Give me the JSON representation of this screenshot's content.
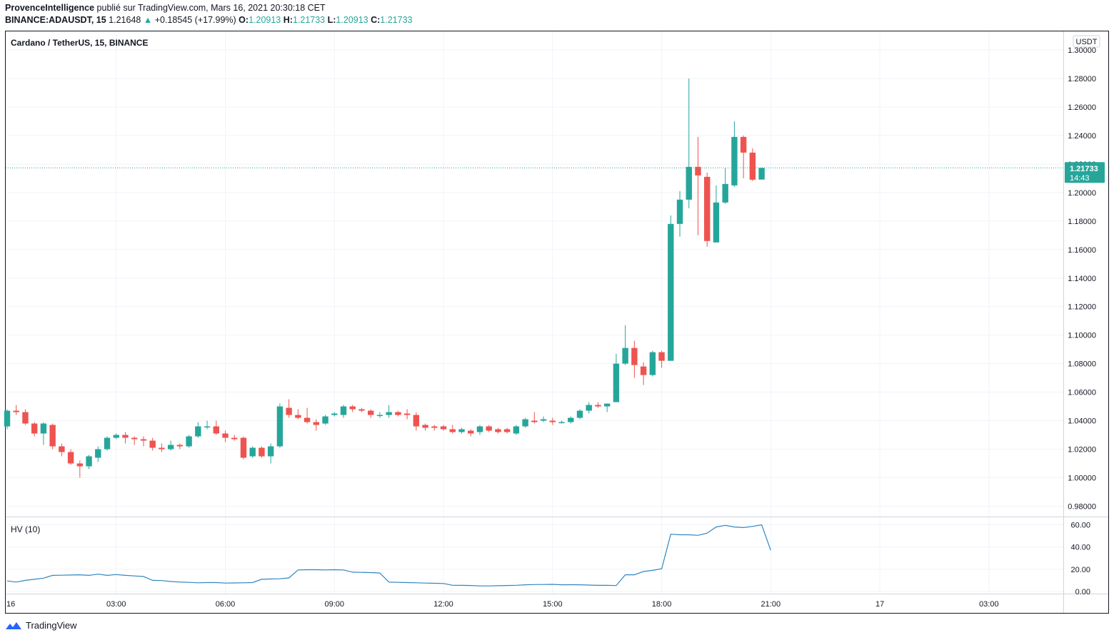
{
  "header": {
    "author": "ProvenceIntelligence",
    "published_text": "publié sur TradingView.com, Mars 16, 2021 20:30:18 CET",
    "symbol": "BINANCE:ADAUSDT, 15",
    "last": "1.21648",
    "change_arrow": "▲",
    "change": "+0.18545 (+17.99%)",
    "o_label": "O:",
    "o_value": "1.20913",
    "h_label": "H:",
    "h_value": "1.21733",
    "l_label": "L:",
    "l_value": "1.20913",
    "c_label": "C:",
    "c_value": "1.21733"
  },
  "footer": {
    "brand": "TradingView"
  },
  "colors": {
    "up": "#26a69a",
    "down": "#ef5350",
    "hv_line": "#2e86c1",
    "grid": "#f0f3fa"
  },
  "chart_data": [
    {
      "type": "candlestick",
      "title": "Cardano / TetherUS, 15, BINANCE",
      "currency": "USDT",
      "ylim": [
        0.97,
        1.305
      ],
      "y_ticks": [
        "0.98000",
        "1.00000",
        "1.02000",
        "1.04000",
        "1.06000",
        "1.08000",
        "1.10000",
        "1.12000",
        "1.14000",
        "1.16000",
        "1.18000",
        "1.20000",
        "1.22000",
        "1.24000",
        "1.26000",
        "1.28000",
        "1.30000"
      ],
      "last_price": "1.21733",
      "countdown": "14:43",
      "x_axis": {
        "labels": [
          "16",
          "03:00",
          "06:00",
          "09:00",
          "12:00",
          "15:00",
          "18:00",
          "21:00",
          "17",
          "03:00"
        ],
        "label_bar_index": [
          0,
          12,
          24,
          36,
          48,
          60,
          72,
          84,
          96,
          108
        ]
      },
      "bar_interval": "15m",
      "candles": [
        {
          "o": 1.036,
          "h": 1.048,
          "l": 1.034,
          "c": 1.047
        },
        {
          "o": 1.047,
          "h": 1.051,
          "l": 1.044,
          "c": 1.046
        },
        {
          "o": 1.046,
          "h": 1.048,
          "l": 1.037,
          "c": 1.038
        },
        {
          "o": 1.038,
          "h": 1.039,
          "l": 1.029,
          "c": 1.031
        },
        {
          "o": 1.031,
          "h": 1.039,
          "l": 1.023,
          "c": 1.038
        },
        {
          "o": 1.037,
          "h": 1.038,
          "l": 1.02,
          "c": 1.022
        },
        {
          "o": 1.022,
          "h": 1.024,
          "l": 1.015,
          "c": 1.018
        },
        {
          "o": 1.018,
          "h": 1.02,
          "l": 1.009,
          "c": 1.01
        },
        {
          "o": 1.01,
          "h": 1.012,
          "l": 1.0,
          "c": 1.008
        },
        {
          "o": 1.008,
          "h": 1.016,
          "l": 1.006,
          "c": 1.015
        },
        {
          "o": 1.014,
          "h": 1.022,
          "l": 1.011,
          "c": 1.02
        },
        {
          "o": 1.02,
          "h": 1.029,
          "l": 1.019,
          "c": 1.028
        },
        {
          "o": 1.028,
          "h": 1.031,
          "l": 1.027,
          "c": 1.03
        },
        {
          "o": 1.03,
          "h": 1.032,
          "l": 1.024,
          "c": 1.028
        },
        {
          "o": 1.028,
          "h": 1.029,
          "l": 1.023,
          "c": 1.027
        },
        {
          "o": 1.027,
          "h": 1.029,
          "l": 1.022,
          "c": 1.026
        },
        {
          "o": 1.026,
          "h": 1.028,
          "l": 1.019,
          "c": 1.021
        },
        {
          "o": 1.021,
          "h": 1.024,
          "l": 1.018,
          "c": 1.02
        },
        {
          "o": 1.02,
          "h": 1.026,
          "l": 1.019,
          "c": 1.023
        },
        {
          "o": 1.023,
          "h": 1.024,
          "l": 1.02,
          "c": 1.022
        },
        {
          "o": 1.022,
          "h": 1.03,
          "l": 1.021,
          "c": 1.029
        },
        {
          "o": 1.029,
          "h": 1.039,
          "l": 1.028,
          "c": 1.036
        },
        {
          "o": 1.036,
          "h": 1.04,
          "l": 1.034,
          "c": 1.036
        },
        {
          "o": 1.036,
          "h": 1.04,
          "l": 1.03,
          "c": 1.031
        },
        {
          "o": 1.031,
          "h": 1.033,
          "l": 1.025,
          "c": 1.028
        },
        {
          "o": 1.028,
          "h": 1.03,
          "l": 1.026,
          "c": 1.027
        },
        {
          "o": 1.028,
          "h": 1.029,
          "l": 1.013,
          "c": 1.014
        },
        {
          "o": 1.015,
          "h": 1.022,
          "l": 1.014,
          "c": 1.021
        },
        {
          "o": 1.021,
          "h": 1.022,
          "l": 1.014,
          "c": 1.015
        },
        {
          "o": 1.015,
          "h": 1.024,
          "l": 1.01,
          "c": 1.022
        },
        {
          "o": 1.022,
          "h": 1.052,
          "l": 1.021,
          "c": 1.05
        },
        {
          "o": 1.049,
          "h": 1.055,
          "l": 1.042,
          "c": 1.044
        },
        {
          "o": 1.044,
          "h": 1.048,
          "l": 1.041,
          "c": 1.042
        },
        {
          "o": 1.042,
          "h": 1.049,
          "l": 1.038,
          "c": 1.039
        },
        {
          "o": 1.039,
          "h": 1.041,
          "l": 1.033,
          "c": 1.037
        },
        {
          "o": 1.038,
          "h": 1.044,
          "l": 1.037,
          "c": 1.043
        },
        {
          "o": 1.044,
          "h": 1.046,
          "l": 1.043,
          "c": 1.045
        },
        {
          "o": 1.044,
          "h": 1.051,
          "l": 1.042,
          "c": 1.05
        },
        {
          "o": 1.05,
          "h": 1.051,
          "l": 1.046,
          "c": 1.048
        },
        {
          "o": 1.048,
          "h": 1.049,
          "l": 1.046,
          "c": 1.047
        },
        {
          "o": 1.047,
          "h": 1.048,
          "l": 1.042,
          "c": 1.044
        },
        {
          "o": 1.044,
          "h": 1.046,
          "l": 1.042,
          "c": 1.044
        },
        {
          "o": 1.044,
          "h": 1.051,
          "l": 1.042,
          "c": 1.046
        },
        {
          "o": 1.046,
          "h": 1.047,
          "l": 1.043,
          "c": 1.044
        },
        {
          "o": 1.045,
          "h": 1.048,
          "l": 1.041,
          "c": 1.044
        },
        {
          "o": 1.044,
          "h": 1.046,
          "l": 1.033,
          "c": 1.036
        },
        {
          "o": 1.037,
          "h": 1.038,
          "l": 1.033,
          "c": 1.035
        },
        {
          "o": 1.036,
          "h": 1.037,
          "l": 1.033,
          "c": 1.035
        },
        {
          "o": 1.036,
          "h": 1.037,
          "l": 1.033,
          "c": 1.034
        },
        {
          "o": 1.034,
          "h": 1.037,
          "l": 1.031,
          "c": 1.032
        },
        {
          "o": 1.032,
          "h": 1.035,
          "l": 1.031,
          "c": 1.034
        },
        {
          "o": 1.033,
          "h": 1.034,
          "l": 1.029,
          "c": 1.031
        },
        {
          "o": 1.032,
          "h": 1.037,
          "l": 1.03,
          "c": 1.036
        },
        {
          "o": 1.036,
          "h": 1.037,
          "l": 1.032,
          "c": 1.033
        },
        {
          "o": 1.034,
          "h": 1.035,
          "l": 1.031,
          "c": 1.032
        },
        {
          "o": 1.034,
          "h": 1.035,
          "l": 1.031,
          "c": 1.032
        },
        {
          "o": 1.031,
          "h": 1.037,
          "l": 1.03,
          "c": 1.036
        },
        {
          "o": 1.036,
          "h": 1.042,
          "l": 1.035,
          "c": 1.041
        },
        {
          "o": 1.04,
          "h": 1.046,
          "l": 1.038,
          "c": 1.039
        },
        {
          "o": 1.04,
          "h": 1.043,
          "l": 1.039,
          "c": 1.041
        },
        {
          "o": 1.04,
          "h": 1.042,
          "l": 1.037,
          "c": 1.039
        },
        {
          "o": 1.039,
          "h": 1.04,
          "l": 1.038,
          "c": 1.039
        },
        {
          "o": 1.039,
          "h": 1.043,
          "l": 1.038,
          "c": 1.042
        },
        {
          "o": 1.042,
          "h": 1.048,
          "l": 1.041,
          "c": 1.047
        },
        {
          "o": 1.047,
          "h": 1.053,
          "l": 1.045,
          "c": 1.051
        },
        {
          "o": 1.051,
          "h": 1.053,
          "l": 1.049,
          "c": 1.05
        },
        {
          "o": 1.05,
          "h": 1.052,
          "l": 1.046,
          "c": 1.052
        },
        {
          "o": 1.053,
          "h": 1.087,
          "l": 1.053,
          "c": 1.08
        },
        {
          "o": 1.08,
          "h": 1.107,
          "l": 1.079,
          "c": 1.091
        },
        {
          "o": 1.091,
          "h": 1.096,
          "l": 1.07,
          "c": 1.079
        },
        {
          "o": 1.078,
          "h": 1.081,
          "l": 1.065,
          "c": 1.072
        },
        {
          "o": 1.072,
          "h": 1.089,
          "l": 1.071,
          "c": 1.088
        },
        {
          "o": 1.088,
          "h": 1.089,
          "l": 1.077,
          "c": 1.082
        },
        {
          "o": 1.082,
          "h": 1.184,
          "l": 1.082,
          "c": 1.178
        },
        {
          "o": 1.178,
          "h": 1.201,
          "l": 1.169,
          "c": 1.195
        },
        {
          "o": 1.195,
          "h": 1.28,
          "l": 1.189,
          "c": 1.218
        },
        {
          "o": 1.218,
          "h": 1.239,
          "l": 1.17,
          "c": 1.212
        },
        {
          "o": 1.211,
          "h": 1.214,
          "l": 1.162,
          "c": 1.166
        },
        {
          "o": 1.165,
          "h": 1.205,
          "l": 1.165,
          "c": 1.193
        },
        {
          "o": 1.193,
          "h": 1.217,
          "l": 1.192,
          "c": 1.206
        },
        {
          "o": 1.205,
          "h": 1.25,
          "l": 1.204,
          "c": 1.239
        },
        {
          "o": 1.239,
          "h": 1.24,
          "l": 1.21,
          "c": 1.228
        },
        {
          "o": 1.228,
          "h": 1.231,
          "l": 1.208,
          "c": 1.209
        },
        {
          "o": 1.2091,
          "h": 1.2173,
          "l": 1.2091,
          "c": 1.2173
        }
      ]
    },
    {
      "type": "line",
      "title": "HV (10)",
      "ylim": [
        0,
        62
      ],
      "y_ticks": [
        "0.00",
        "20.00",
        "40.00",
        "60.00"
      ],
      "values": [
        9.5,
        8.5,
        10,
        11,
        12,
        14.5,
        14.6,
        14.8,
        15,
        14.5,
        15.6,
        14.5,
        15.2,
        14.5,
        14,
        13.5,
        10,
        9.8,
        9,
        8.5,
        8.2,
        7.8,
        8,
        8,
        7.6,
        7.7,
        7.8,
        8,
        11,
        11.2,
        11.4,
        12.2,
        19.4,
        19.6,
        19.6,
        19.4,
        19.6,
        19.4,
        17.4,
        17.2,
        17,
        16.6,
        8.4,
        8.2,
        8,
        7.8,
        7.6,
        7.4,
        7.2,
        5.6,
        5.5,
        5.4,
        5,
        5,
        5.2,
        5.4,
        5.6,
        6,
        6.2,
        6.3,
        6.4,
        6,
        6.1,
        6,
        5.8,
        5.5,
        5.5,
        5.3,
        15,
        15,
        18,
        19,
        20.5,
        51.5,
        51,
        51,
        50.5,
        52.5,
        58,
        59.5,
        58,
        57.5,
        58.5,
        60,
        37
      ]
    }
  ]
}
